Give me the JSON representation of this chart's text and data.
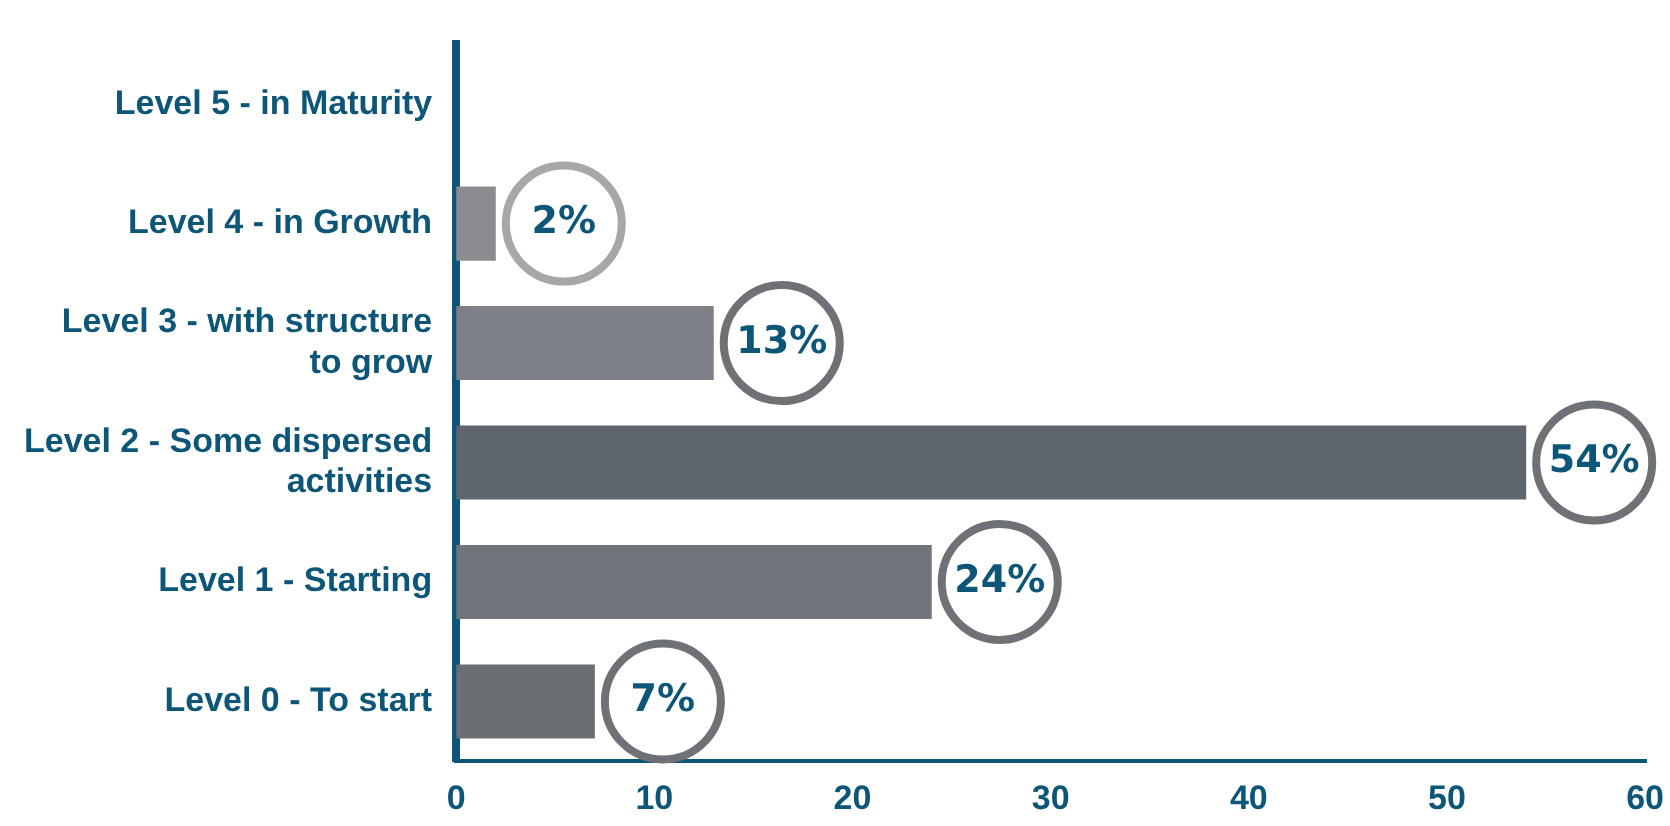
{
  "chart_data": {
    "type": "bar",
    "orientation": "horizontal",
    "categories": [
      "Level 5 - in Maturity",
      "Level 4 - in Growth",
      "Level 3 - with structure to grow",
      "Level 2 - Some dispersed activities",
      "Level 1 - Starting",
      "Level 0 - To start"
    ],
    "values": [
      0,
      2,
      13,
      54,
      24,
      7
    ],
    "colors": [
      "#8a8c8f",
      "#8a8c8f",
      "#7d8087",
      "#5f656d",
      "#70747b",
      "#6b6e73"
    ],
    "value_labels": [
      null,
      "2%",
      "13%",
      "54%",
      "24%",
      "7%"
    ],
    "xlim": [
      0,
      60
    ],
    "xticks": [
      0,
      10,
      20,
      30,
      40,
      50,
      60
    ],
    "grid": false,
    "legend": false
  }
}
